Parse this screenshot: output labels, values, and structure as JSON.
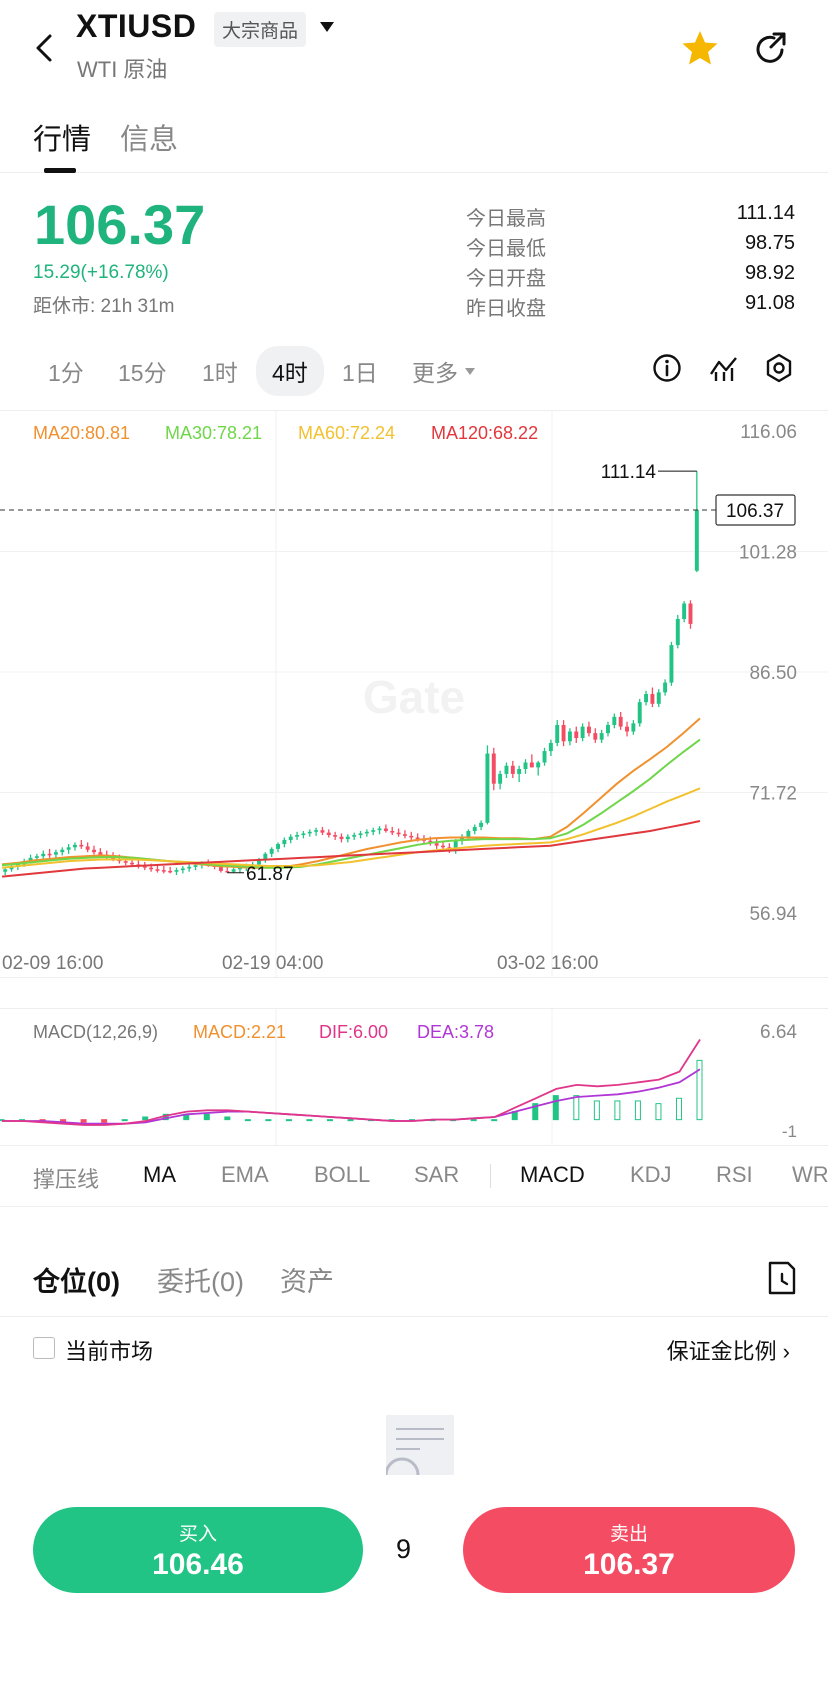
{
  "header": {
    "symbol": "XTIUSD",
    "badge": "大宗商品",
    "subname": "WTI 原油",
    "icons": {
      "back": "back-arrow-icon",
      "star": "star-icon",
      "share": "share-icon"
    },
    "star_color": "#f5b700"
  },
  "tabs": [
    {
      "label": "行情"
    },
    {
      "label": "信息"
    }
  ],
  "quote": {
    "price": "106.37",
    "change": "15.29(+16.78%)",
    "close_time": "距休市: 21h 31m",
    "price_color": "#1fb37e",
    "stats": [
      {
        "label": "今日最高",
        "value": "111.14"
      },
      {
        "label": "今日最低",
        "value": "98.75"
      },
      {
        "label": "今日开盘",
        "value": "98.92"
      },
      {
        "label": "昨日收盘",
        "value": "91.08"
      }
    ]
  },
  "timeframes": [
    {
      "label": "1分"
    },
    {
      "label": "15分"
    },
    {
      "label": "1时"
    },
    {
      "label": "4时"
    },
    {
      "label": "1日"
    },
    {
      "label": "更多"
    }
  ],
  "toolbar_icons": [
    "info-icon",
    "indicator-icon",
    "settings-icon"
  ],
  "chart_data": {
    "type": "candlestick",
    "watermark": "Gate",
    "ma_legend": [
      {
        "label": "MA20:80.81",
        "color": "#f0902e"
      },
      {
        "label": "MA30:78.21",
        "color": "#6fd64a"
      },
      {
        "label": "MA60:72.24",
        "color": "#f2c12e"
      },
      {
        "label": "MA120:68.22",
        "color": "#e0383c"
      }
    ],
    "y_ticks": [
      "116.06",
      "101.28",
      "86.50",
      "71.72",
      "56.94"
    ],
    "ylim": [
      56.94,
      116.06
    ],
    "x_ticks": [
      "02-09 16:00",
      "02-19 04:00",
      "03-02 16:00"
    ],
    "current_price_tag": "106.37",
    "high_marker": "111.14",
    "low_marker": "61.87",
    "candles": [
      [
        62.0,
        62.6,
        61.6,
        62.3
      ],
      [
        62.3,
        63.0,
        62.0,
        62.6
      ],
      [
        62.6,
        63.2,
        62.2,
        62.9
      ],
      [
        62.9,
        63.6,
        62.6,
        63.3
      ],
      [
        63.3,
        64.1,
        63.0,
        63.7
      ],
      [
        63.7,
        64.2,
        63.2,
        63.9
      ],
      [
        63.9,
        64.6,
        63.5,
        64.2
      ],
      [
        64.2,
        64.8,
        63.7,
        64.1
      ],
      [
        64.1,
        64.7,
        63.6,
        64.4
      ],
      [
        64.4,
        65.0,
        64.0,
        64.7
      ],
      [
        64.7,
        65.4,
        64.2,
        65.0
      ],
      [
        65.0,
        65.6,
        64.6,
        65.3
      ],
      [
        65.3,
        65.9,
        64.8,
        65.1
      ],
      [
        65.1,
        65.6,
        64.4,
        64.7
      ],
      [
        64.7,
        65.2,
        64.1,
        64.4
      ],
      [
        64.4,
        64.9,
        63.8,
        64.1
      ],
      [
        64.1,
        64.6,
        63.6,
        63.9
      ],
      [
        63.9,
        64.4,
        63.3,
        63.6
      ],
      [
        63.6,
        64.1,
        63.0,
        63.3
      ],
      [
        63.3,
        63.8,
        62.8,
        63.1
      ],
      [
        63.1,
        63.6,
        62.6,
        62.9
      ],
      [
        62.9,
        63.4,
        62.4,
        62.7
      ],
      [
        62.7,
        63.2,
        62.2,
        62.5
      ],
      [
        62.5,
        63.0,
        62.0,
        62.3
      ],
      [
        62.3,
        62.8,
        61.9,
        62.2
      ],
      [
        62.2,
        62.7,
        61.8,
        62.1
      ],
      [
        62.1,
        62.6,
        61.8,
        62.0
      ],
      [
        62.0,
        62.5,
        61.6,
        62.2
      ],
      [
        62.2,
        62.7,
        61.8,
        62.4
      ],
      [
        62.4,
        62.9,
        62.0,
        62.6
      ],
      [
        62.6,
        63.1,
        62.2,
        62.8
      ],
      [
        62.8,
        63.3,
        62.4,
        63.0
      ],
      [
        63.0,
        63.5,
        62.6,
        62.8
      ],
      [
        62.8,
        63.3,
        62.3,
        62.6
      ],
      [
        62.6,
        63.2,
        61.9,
        62.1
      ],
      [
        62.1,
        62.6,
        61.87,
        62.0
      ],
      [
        62.0,
        62.5,
        61.9,
        62.3
      ],
      [
        62.3,
        62.8,
        61.9,
        62.5
      ],
      [
        62.5,
        63.0,
        62.1,
        62.7
      ],
      [
        62.7,
        63.2,
        62.3,
        62.9
      ],
      [
        62.9,
        63.7,
        62.5,
        63.5
      ],
      [
        63.5,
        64.4,
        63.1,
        64.2
      ],
      [
        64.2,
        65.0,
        63.8,
        64.8
      ],
      [
        64.8,
        65.6,
        64.4,
        65.4
      ],
      [
        65.4,
        66.2,
        65.0,
        65.9
      ],
      [
        65.9,
        66.6,
        65.5,
        66.3
      ],
      [
        66.3,
        66.9,
        65.9,
        66.5
      ],
      [
        66.5,
        67.0,
        66.1,
        66.7
      ],
      [
        66.7,
        67.2,
        66.3,
        66.9
      ],
      [
        66.9,
        67.4,
        66.4,
        67.1
      ],
      [
        67.1,
        67.5,
        66.5,
        66.8
      ],
      [
        66.8,
        67.2,
        66.2,
        66.5
      ],
      [
        66.5,
        66.9,
        65.9,
        66.3
      ],
      [
        66.3,
        66.7,
        65.6,
        66.0
      ],
      [
        66.0,
        66.6,
        65.6,
        66.3
      ],
      [
        66.3,
        66.8,
        65.9,
        66.5
      ],
      [
        66.5,
        67.0,
        66.1,
        66.7
      ],
      [
        66.7,
        67.2,
        66.3,
        66.9
      ],
      [
        66.9,
        67.4,
        66.5,
        67.1
      ],
      [
        67.1,
        67.6,
        66.6,
        67.3
      ],
      [
        67.3,
        67.8,
        66.8,
        67.0
      ],
      [
        67.0,
        67.5,
        66.5,
        66.8
      ],
      [
        66.8,
        67.3,
        66.3,
        66.6
      ],
      [
        66.6,
        67.1,
        66.1,
        66.4
      ],
      [
        66.4,
        66.9,
        65.9,
        66.2
      ],
      [
        66.2,
        66.7,
        65.7,
        66.0
      ],
      [
        66.0,
        66.5,
        65.5,
        65.8
      ],
      [
        65.8,
        66.3,
        65.2,
        65.5
      ],
      [
        65.5,
        66.0,
        64.8,
        65.2
      ],
      [
        65.2,
        65.7,
        64.5,
        65.0
      ],
      [
        65.0,
        65.5,
        64.3,
        64.8
      ],
      [
        64.8,
        66.0,
        64.2,
        65.8
      ],
      [
        65.8,
        66.6,
        65.3,
        66.3
      ],
      [
        66.3,
        67.2,
        65.8,
        67.0
      ],
      [
        67.0,
        67.8,
        66.6,
        67.5
      ],
      [
        67.5,
        68.3,
        67.1,
        68.0
      ],
      [
        68.0,
        77.5,
        67.8,
        76.5
      ],
      [
        76.5,
        77.2,
        72.0,
        72.8
      ],
      [
        72.8,
        74.4,
        72.1,
        74.0
      ],
      [
        74.0,
        75.4,
        73.5,
        75.0
      ],
      [
        75.0,
        75.6,
        73.5,
        74.0
      ],
      [
        74.0,
        75.0,
        73.0,
        74.6
      ],
      [
        74.6,
        75.8,
        74.0,
        75.4
      ],
      [
        75.4,
        76.4,
        74.8,
        74.8
      ],
      [
        74.8,
        75.6,
        73.8,
        75.4
      ],
      [
        75.4,
        77.2,
        75.0,
        76.8
      ],
      [
        76.8,
        78.2,
        76.2,
        77.8
      ],
      [
        77.8,
        80.6,
        77.4,
        80.0
      ],
      [
        80.0,
        80.6,
        77.4,
        78.0
      ],
      [
        78.0,
        79.6,
        77.5,
        79.2
      ],
      [
        79.2,
        79.8,
        77.8,
        78.4
      ],
      [
        78.4,
        80.2,
        78.0,
        79.8
      ],
      [
        79.8,
        80.4,
        78.6,
        79.0
      ],
      [
        79.0,
        79.6,
        77.8,
        78.2
      ],
      [
        78.2,
        79.4,
        77.8,
        79.0
      ],
      [
        79.0,
        80.4,
        78.6,
        80.0
      ],
      [
        80.0,
        81.4,
        79.6,
        81.0
      ],
      [
        81.0,
        81.6,
        79.4,
        79.8
      ],
      [
        79.8,
        80.4,
        78.6,
        79.2
      ],
      [
        79.2,
        80.6,
        78.8,
        80.2
      ],
      [
        80.2,
        83.2,
        79.8,
        82.8
      ],
      [
        82.8,
        84.2,
        82.4,
        83.8
      ],
      [
        83.8,
        84.6,
        82.2,
        82.6
      ],
      [
        82.6,
        84.4,
        82.2,
        84.0
      ],
      [
        84.0,
        85.6,
        83.6,
        85.2
      ],
      [
        85.2,
        90.2,
        84.8,
        89.8
      ],
      [
        89.8,
        93.5,
        89.4,
        93.0
      ],
      [
        93.0,
        95.2,
        92.6,
        94.9
      ],
      [
        94.9,
        95.3,
        91.8,
        92.4
      ],
      [
        98.92,
        111.14,
        98.75,
        106.37
      ]
    ],
    "ma_series": {
      "MA20": [
        62.9,
        63.1,
        63.4,
        63.6,
        63.8,
        63.9,
        64.0,
        63.9,
        63.7,
        63.5,
        63.3,
        63.1,
        62.9,
        62.7,
        62.6,
        62.5,
        62.5,
        62.6,
        62.9,
        63.3,
        63.8,
        64.3,
        64.8,
        65.2,
        65.6,
        65.9,
        66.1,
        66.2,
        66.2,
        66.2,
        66.1,
        66.1,
        66.0,
        66.3,
        67.5,
        69.2,
        71.0,
        72.8,
        74.4,
        75.8,
        77.3,
        79.0,
        80.81
      ],
      "MA30": [
        62.8,
        63.0,
        63.2,
        63.4,
        63.6,
        63.7,
        63.8,
        63.8,
        63.7,
        63.5,
        63.3,
        63.2,
        63.0,
        62.8,
        62.7,
        62.6,
        62.5,
        62.5,
        62.6,
        62.9,
        63.3,
        63.7,
        64.1,
        64.5,
        64.9,
        65.3,
        65.6,
        65.8,
        65.9,
        66.0,
        66.0,
        66.0,
        66.0,
        66.1,
        66.7,
        67.8,
        69.1,
        70.5,
        71.9,
        73.4,
        75.1,
        76.7,
        78.21
      ],
      "MA60": [
        62.5,
        62.7,
        62.9,
        63.1,
        63.3,
        63.4,
        63.5,
        63.5,
        63.5,
        63.4,
        63.3,
        63.2,
        63.1,
        63.0,
        62.9,
        62.8,
        62.7,
        62.7,
        62.7,
        62.8,
        63.0,
        63.2,
        63.5,
        63.8,
        64.1,
        64.4,
        64.6,
        64.8,
        65.0,
        65.2,
        65.3,
        65.4,
        65.5,
        65.6,
        66.0,
        66.6,
        67.3,
        68.0,
        68.8,
        69.7,
        70.6,
        71.4,
        72.24
      ],
      "MA120": [
        61.4,
        61.6,
        61.8,
        62.0,
        62.2,
        62.4,
        62.5,
        62.6,
        62.7,
        62.8,
        62.9,
        63.0,
        63.1,
        63.2,
        63.3,
        63.4,
        63.5,
        63.6,
        63.7,
        63.8,
        63.9,
        64.0,
        64.1,
        64.2,
        64.3,
        64.4,
        64.5,
        64.6,
        64.7,
        64.8,
        64.9,
        65.0,
        65.1,
        65.2,
        65.5,
        65.8,
        66.1,
        66.4,
        66.7,
        67.0,
        67.4,
        67.8,
        68.22
      ]
    }
  },
  "macd": {
    "legend": [
      {
        "label": "MACD(12,26,9)",
        "color": "#777"
      },
      {
        "label": "MACD:2.21",
        "color": "#f0902e"
      },
      {
        "label": "DIF:6.00",
        "color": "#e0368a"
      },
      {
        "label": "DEA:3.78",
        "color": "#b036d6"
      }
    ],
    "y_ticks": [
      "6.64",
      "-1"
    ],
    "ylim": [
      -1,
      6.64
    ],
    "dif": [
      -0.1,
      -0.1,
      -0.2,
      -0.3,
      -0.4,
      -0.4,
      -0.3,
      -0.1,
      0.3,
      0.6,
      0.7,
      0.7,
      0.6,
      0.5,
      0.4,
      0.3,
      0.2,
      0.1,
      0.0,
      -0.1,
      -0.1,
      0.0,
      0.0,
      0.1,
      0.2,
      0.9,
      1.6,
      2.3,
      2.6,
      2.5,
      2.6,
      2.8,
      3.0,
      3.6,
      6.0
    ],
    "dea": [
      -0.1,
      -0.1,
      -0.1,
      -0.2,
      -0.3,
      -0.3,
      -0.3,
      -0.2,
      0.1,
      0.4,
      0.5,
      0.6,
      0.6,
      0.5,
      0.4,
      0.3,
      0.2,
      0.1,
      0.0,
      -0.1,
      -0.1,
      0.0,
      0.0,
      0.1,
      0.2,
      0.6,
      1.0,
      1.4,
      1.7,
      1.8,
      1.9,
      2.1,
      2.4,
      2.8,
      3.78
    ]
  },
  "indicator_tabs": [
    {
      "label": "撑压线"
    },
    {
      "label": "MA"
    },
    {
      "label": "EMA"
    },
    {
      "label": "BOLL"
    },
    {
      "label": "SAR"
    },
    {
      "label": "MACD"
    },
    {
      "label": "KDJ"
    },
    {
      "label": "RSI"
    },
    {
      "label": "WR"
    }
  ],
  "position_tabs": [
    {
      "label": "仓位(0)"
    },
    {
      "label": "委托(0)"
    },
    {
      "label": "资产"
    }
  ],
  "position_icon": "clock-document-icon",
  "filter": {
    "label": "当前市场",
    "margin_link": "保证金比例"
  },
  "trade": {
    "buy_label": "买入",
    "buy_price": "106.46",
    "buy_color": "#21c485",
    "sell_label": "卖出",
    "sell_price": "106.37",
    "sell_color": "#f44d63",
    "quantity": "9"
  }
}
